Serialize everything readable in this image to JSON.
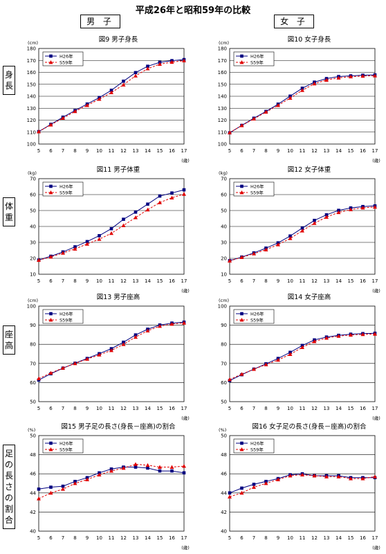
{
  "page": {
    "title": "平成26年と昭和59年の比較",
    "col_boys": "男 子",
    "col_girls": "女 子",
    "row_labels": [
      "身長",
      "体重",
      "座高",
      "足の長さの割合"
    ]
  },
  "colors": {
    "h26": "#000080",
    "s59": "#e00000",
    "grid": "#000000"
  },
  "chart_data": [
    {
      "type": "line",
      "title": "図9 男子身長",
      "unit": "(cm)",
      "xunit": "(歳)",
      "x": [
        5,
        6,
        7,
        8,
        9,
        10,
        11,
        12,
        13,
        14,
        15,
        16,
        17
      ],
      "ylim": [
        100,
        180
      ],
      "yticks": [
        100,
        110,
        120,
        130,
        140,
        150,
        160,
        170,
        180
      ],
      "grid": true,
      "legend_position": "top-left",
      "series": [
        {
          "name": "H26年",
          "values": [
            110.4,
            116.5,
            122.5,
            128.1,
            133.5,
            138.9,
            145.0,
            152.6,
            159.8,
            165.1,
            168.4,
            169.8,
            170.7
          ]
        },
        {
          "name": "S59年",
          "values": [
            110.4,
            116.1,
            121.7,
            127.3,
            132.4,
            137.6,
            143.1,
            149.6,
            157.1,
            163.1,
            166.9,
            168.6,
            169.8
          ]
        }
      ]
    },
    {
      "type": "line",
      "title": "図10 女子身長",
      "unit": "(cm)",
      "xunit": "(歳)",
      "x": [
        5,
        6,
        7,
        8,
        9,
        10,
        11,
        12,
        13,
        14,
        15,
        16,
        17
      ],
      "ylim": [
        100,
        180
      ],
      "yticks": [
        100,
        110,
        120,
        130,
        140,
        150,
        160,
        170,
        180
      ],
      "grid": true,
      "legend_position": "top-left",
      "series": [
        {
          "name": "H26年",
          "values": [
            109.4,
            115.6,
            121.6,
            127.3,
            133.4,
            140.1,
            146.7,
            151.8,
            154.8,
            156.5,
            157.1,
            157.6,
            157.9
          ]
        },
        {
          "name": "S59年",
          "values": [
            109.6,
            115.5,
            121.1,
            126.8,
            132.4,
            138.5,
            145.0,
            150.5,
            153.6,
            155.4,
            156.4,
            156.9,
            157.2
          ]
        }
      ]
    },
    {
      "type": "line",
      "title": "図11 男子体重",
      "unit": "(kg)",
      "xunit": "(歳)",
      "x": [
        5,
        6,
        7,
        8,
        9,
        10,
        11,
        12,
        13,
        14,
        15,
        16,
        17
      ],
      "ylim": [
        10,
        70
      ],
      "yticks": [
        10,
        20,
        30,
        40,
        50,
        60,
        70
      ],
      "grid": true,
      "legend_position": "top-left",
      "series": [
        {
          "name": "H26年",
          "values": [
            18.9,
            21.3,
            24.0,
            27.2,
            30.5,
            34.2,
            38.6,
            44.5,
            49.0,
            54.0,
            59.1,
            61.0,
            63.0
          ]
        },
        {
          "name": "S59年",
          "values": [
            18.8,
            20.9,
            23.3,
            25.9,
            29.0,
            32.0,
            35.7,
            40.6,
            45.6,
            50.5,
            55.0,
            58.0,
            60.3
          ]
        }
      ]
    },
    {
      "type": "line",
      "title": "図12 女子体重",
      "unit": "(kg)",
      "xunit": "(歳)",
      "x": [
        5,
        6,
        7,
        8,
        9,
        10,
        11,
        12,
        13,
        14,
        15,
        16,
        17
      ],
      "ylim": [
        10,
        70
      ],
      "yticks": [
        10,
        20,
        30,
        40,
        50,
        60,
        70
      ],
      "grid": true,
      "legend_position": "top-left",
      "series": [
        {
          "name": "H26年",
          "values": [
            18.5,
            20.8,
            23.4,
            26.4,
            29.7,
            34.0,
            39.0,
            43.8,
            47.3,
            50.1,
            51.6,
            52.5,
            52.9
          ]
        },
        {
          "name": "S59年",
          "values": [
            18.4,
            20.6,
            22.9,
            25.4,
            28.6,
            32.5,
            37.3,
            42.0,
            45.9,
            48.8,
            50.6,
            51.7,
            52.2
          ]
        }
      ]
    },
    {
      "type": "line",
      "title": "図13 男子座高",
      "unit": "(cm)",
      "xunit": "(歳)",
      "x": [
        5,
        6,
        7,
        8,
        9,
        10,
        11,
        12,
        13,
        14,
        15,
        16,
        17
      ],
      "ylim": [
        50,
        100
      ],
      "yticks": [
        50,
        60,
        70,
        80,
        90,
        100
      ],
      "grid": true,
      "legend_position": "top-left",
      "series": [
        {
          "name": "H26年",
          "values": [
            61.3,
            64.6,
            67.5,
            70.1,
            72.6,
            75.1,
            77.7,
            81.1,
            84.9,
            87.9,
            90.1,
            91.1,
            91.6
          ]
        },
        {
          "name": "S59年",
          "values": [
            62.1,
            65.0,
            67.6,
            70.0,
            72.3,
            74.5,
            76.8,
            80.0,
            83.8,
            87.1,
            89.5,
            90.6,
            91.2
          ]
        }
      ]
    },
    {
      "type": "line",
      "title": "図14 女子座高",
      "unit": "(cm)",
      "xunit": "(歳)",
      "x": [
        5,
        6,
        7,
        8,
        9,
        10,
        11,
        12,
        13,
        14,
        15,
        16,
        17
      ],
      "ylim": [
        50,
        100
      ],
      "yticks": [
        50,
        60,
        70,
        80,
        90,
        100
      ],
      "grid": true,
      "legend_position": "top-left",
      "series": [
        {
          "name": "H26年",
          "values": [
            61.0,
            64.1,
            67.0,
            69.8,
            72.6,
            75.8,
            79.4,
            82.3,
            83.8,
            84.7,
            85.3,
            85.6,
            85.8
          ]
        },
        {
          "name": "S59年",
          "values": [
            61.6,
            64.4,
            67.0,
            69.4,
            71.8,
            74.8,
            78.4,
            81.5,
            83.3,
            84.3,
            84.9,
            85.2,
            85.4
          ]
        }
      ]
    },
    {
      "type": "line",
      "title": "図15 男子足の長さ(身長－座高)の割合",
      "unit": "(%)",
      "xunit": "(歳)",
      "x": [
        5,
        6,
        7,
        8,
        9,
        10,
        11,
        12,
        13,
        14,
        15,
        16,
        17
      ],
      "ylim": [
        40,
        50
      ],
      "yticks": [
        40,
        42,
        44,
        46,
        48,
        50
      ],
      "grid": true,
      "legend_position": "top-left",
      "series": [
        {
          "name": "H26年",
          "values": [
            44.4,
            44.6,
            44.7,
            45.2,
            45.6,
            46.1,
            46.5,
            46.7,
            46.7,
            46.6,
            46.3,
            46.3,
            46.1
          ]
        },
        {
          "name": "S59年",
          "values": [
            43.4,
            44.0,
            44.4,
            45.0,
            45.4,
            45.9,
            46.3,
            46.6,
            47.0,
            46.9,
            46.7,
            46.7,
            46.8
          ]
        }
      ]
    },
    {
      "type": "line",
      "title": "図16 女子足の長さ(身長－座高)の割合",
      "unit": "(%)",
      "xunit": "(歳)",
      "x": [
        5,
        6,
        7,
        8,
        9,
        10,
        11,
        12,
        13,
        14,
        15,
        16,
        17
      ],
      "ylim": [
        40,
        50
      ],
      "yticks": [
        40,
        42,
        44,
        46,
        48,
        50
      ],
      "grid": true,
      "legend_position": "top-left",
      "series": [
        {
          "name": "H26年",
          "values": [
            44.0,
            44.5,
            44.9,
            45.2,
            45.5,
            45.9,
            46.0,
            45.8,
            45.8,
            45.8,
            45.6,
            45.6,
            45.6
          ]
        },
        {
          "name": "S59年",
          "values": [
            43.6,
            44.0,
            44.6,
            45.0,
            45.4,
            45.8,
            45.9,
            45.8,
            45.7,
            45.7,
            45.5,
            45.5,
            45.7
          ]
        }
      ]
    }
  ]
}
